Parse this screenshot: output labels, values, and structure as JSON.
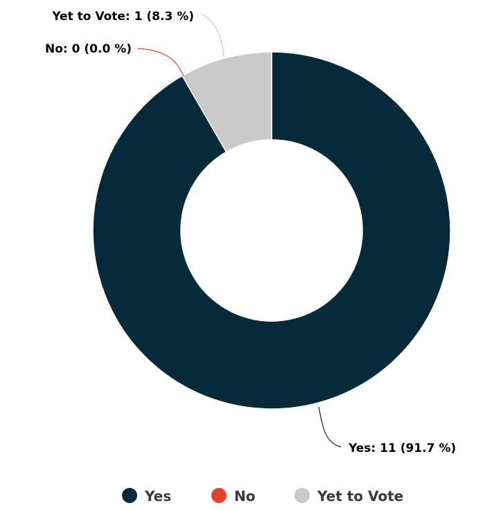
{
  "chart_data": {
    "type": "donut",
    "title": "",
    "series": [
      {
        "values": [
          11,
          0,
          1
        ],
        "labels": [
          "Yes: 11 (91.7 %)",
          "No: 0 (0.0 %)",
          "Yet to Vote: 1 (8.3 %)"
        ]
      }
    ],
    "categories": [
      "Yes",
      "No",
      "Yet to Vote"
    ],
    "percentages": [
      91.7,
      0.0,
      8.3
    ],
    "colors": [
      "#062a3a",
      "#e5412d",
      "#c9c9c9"
    ],
    "legend": {
      "position": "bottom",
      "items": [
        "Yes",
        "No",
        "Yet to Vote"
      ]
    }
  }
}
